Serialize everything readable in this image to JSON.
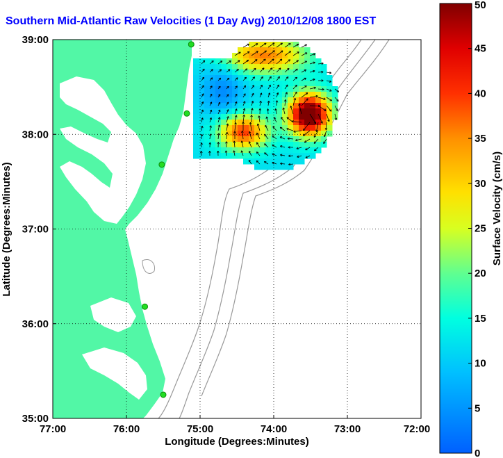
{
  "title": "Southern Mid-Atlantic Raw Velocities (1 Day Avg) 2010/12/08 1800 EST",
  "chart_data": {
    "type": "map",
    "xlabel": "Longitude (Degrees:Minutes)",
    "ylabel": "Latitude (Degrees:Minutes)",
    "xlim": [
      -77,
      -72
    ],
    "ylim": [
      35,
      39
    ],
    "x_ticks": [
      "77:00",
      "76:00",
      "75:00",
      "74:00",
      "73:00",
      "72:00"
    ],
    "y_ticks": [
      "39:00",
      "38:00",
      "37:00",
      "36:00",
      "35:00"
    ],
    "colorbar": {
      "label": "Surface Velocity (cm/s)",
      "range": [
        0,
        50
      ],
      "ticks": [
        "0",
        "5",
        "10",
        "15",
        "20",
        "25",
        "30",
        "35",
        "40",
        "45",
        "50"
      ]
    },
    "colors": {
      "land": "#52f7a6",
      "water": "#ffffff",
      "contour": "#999999",
      "station": "#22dd22"
    },
    "stations": [
      {
        "lon": -75.12,
        "lat": 38.95
      },
      {
        "lon": -75.18,
        "lat": 38.22
      },
      {
        "lon": -75.52,
        "lat": 37.68
      },
      {
        "lon": -75.75,
        "lat": 36.18
      },
      {
        "lon": -75.5,
        "lat": 35.25
      }
    ]
  }
}
